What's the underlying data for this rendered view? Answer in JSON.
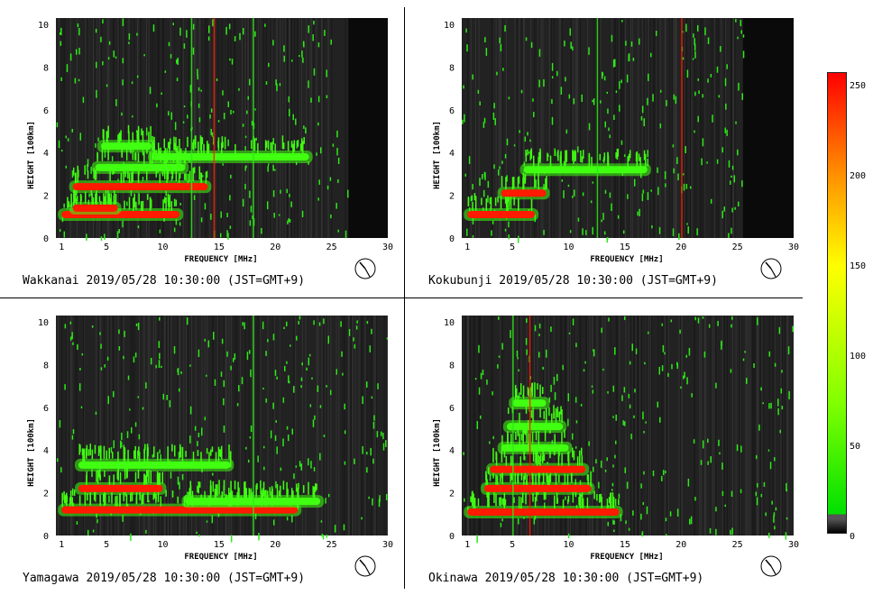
{
  "chart_data": [
    {
      "type": "heatmap",
      "station": "Wakkanai",
      "caption": "Wakkanai 2019/05/28 10:30:00 (JST=GMT+9)",
      "xlabel": "FREQUENCY [MHz]",
      "ylabel": "HEIGHT [100km]",
      "xlim": [
        0.5,
        30
      ],
      "ylim": [
        0,
        10.3
      ],
      "xticks": [
        "1",
        "5",
        "10",
        "15",
        "20",
        "25",
        "30"
      ],
      "yticks": [
        "0",
        "2",
        "4",
        "6",
        "8",
        "10"
      ],
      "traces": [
        {
          "x": [
            1,
            11.5
          ],
          "y": 1.1,
          "level": "red"
        },
        {
          "x": [
            2,
            6
          ],
          "y": 1.4,
          "level": "red"
        },
        {
          "x": [
            2,
            14
          ],
          "y": 2.4,
          "level": "red"
        },
        {
          "x": [
            4,
            12
          ],
          "y": 3.3,
          "level": "green"
        },
        {
          "x": [
            9,
            23
          ],
          "y": 3.8,
          "level": "green"
        },
        {
          "x": [
            4.5,
            9
          ],
          "y": 4.3,
          "level": "green"
        }
      ],
      "spikes": [
        12.5,
        14.5,
        18
      ],
      "blank_band": [
        26.5,
        30
      ]
    },
    {
      "type": "heatmap",
      "station": "Kokubunji",
      "caption": "Kokubunji 2019/05/28 10:30:00 (JST=GMT+9)",
      "xlabel": "FREQUENCY [MHz]",
      "ylabel": "HEIGHT [100km]",
      "xlim": [
        0.5,
        30
      ],
      "ylim": [
        0,
        10.3
      ],
      "xticks": [
        "1",
        "5",
        "10",
        "15",
        "20",
        "25",
        "30"
      ],
      "yticks": [
        "0",
        "2",
        "4",
        "6",
        "8",
        "10"
      ],
      "traces": [
        {
          "x": [
            1,
            7
          ],
          "y": 1.1,
          "level": "red"
        },
        {
          "x": [
            4,
            8
          ],
          "y": 2.1,
          "level": "red"
        },
        {
          "x": [
            6,
            17
          ],
          "y": 3.2,
          "level": "green"
        }
      ],
      "spikes": [
        12.5,
        20
      ],
      "blank_band": [
        25.5,
        30
      ]
    },
    {
      "type": "heatmap",
      "station": "Yamagawa",
      "caption": "Yamagawa 2019/05/28 10:30:00 (JST=GMT+9)",
      "xlabel": "FREQUENCY [MHz]",
      "ylabel": "HEIGHT [100km]",
      "xlim": [
        0.5,
        30
      ],
      "ylim": [
        0,
        10.3
      ],
      "xticks": [
        "1",
        "5",
        "10",
        "15",
        "20",
        "25",
        "30"
      ],
      "yticks": [
        "0",
        "2",
        "4",
        "6",
        "8",
        "10"
      ],
      "traces": [
        {
          "x": [
            1,
            22
          ],
          "y": 1.2,
          "level": "red"
        },
        {
          "x": [
            12,
            24
          ],
          "y": 1.6,
          "level": "green"
        },
        {
          "x": [
            2.5,
            10
          ],
          "y": 2.2,
          "level": "red"
        },
        {
          "x": [
            2.5,
            16
          ],
          "y": 3.3,
          "level": "green"
        }
      ],
      "spikes": [
        18
      ],
      "blank_band": []
    },
    {
      "type": "heatmap",
      "station": "Okinawa",
      "caption": "Okinawa 2019/05/28 10:30:00 (JST=GMT+9)",
      "xlabel": "FREQUENCY [MHz]",
      "ylabel": "HEIGHT [100km]",
      "xlim": [
        0.5,
        30
      ],
      "ylim": [
        0,
        10.3
      ],
      "xticks": [
        "1",
        "5",
        "10",
        "15",
        "20",
        "25",
        "30"
      ],
      "yticks": [
        "0",
        "2",
        "4",
        "6",
        "8",
        "10"
      ],
      "traces": [
        {
          "x": [
            1,
            14.5
          ],
          "y": 1.1,
          "level": "red"
        },
        {
          "x": [
            2.5,
            12
          ],
          "y": 2.2,
          "level": "red"
        },
        {
          "x": [
            3,
            11.5
          ],
          "y": 3.1,
          "level": "red"
        },
        {
          "x": [
            4,
            10
          ],
          "y": 4.1,
          "level": "green"
        },
        {
          "x": [
            4.5,
            9.5
          ],
          "y": 5.1,
          "level": "green"
        },
        {
          "x": [
            5,
            8
          ],
          "y": 6.2,
          "level": "green"
        }
      ],
      "spikes": [
        5,
        6.5
      ],
      "blank_band": []
    }
  ],
  "colorbar": {
    "labels": [
      "250",
      "200",
      "150",
      "100",
      "50",
      "0"
    ],
    "range": [
      0,
      255
    ],
    "stops": [
      "#000000",
      "#555555",
      "#00e000",
      "#80ff00",
      "#ffff00",
      "#ff9000",
      "#ff0000"
    ]
  },
  "colors": {
    "background": "#222222",
    "red": "#ff1a00",
    "green": "#40ff10",
    "noise": "#2fe81a"
  }
}
